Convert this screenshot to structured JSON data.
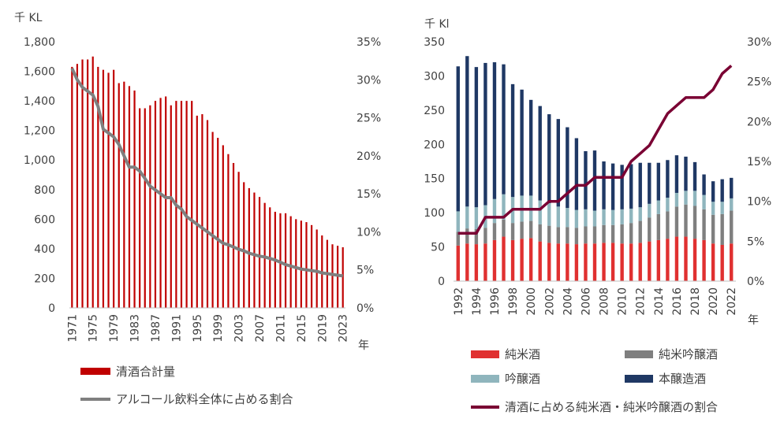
{
  "chart_data": [
    {
      "type": "bar+line",
      "ylabel_left": "千 KL",
      "xlabel": "年",
      "ylim_left": [
        0,
        1800
      ],
      "ylim_right": [
        0,
        35
      ],
      "left_ticks": [
        "0",
        "200",
        "400",
        "600",
        "800",
        "1,000",
        "1,200",
        "1,400",
        "1,600",
        "1,800"
      ],
      "right_ticks": [
        "0%",
        "5%",
        "10%",
        "15%",
        "20%",
        "25%",
        "30%",
        "35%"
      ],
      "x_ticks": [
        "1971",
        "1975",
        "1979",
        "1983",
        "1987",
        "1991",
        "1995",
        "1999",
        "2003",
        "2007",
        "2011",
        "2015",
        "2019",
        "2023"
      ],
      "years": [
        1971,
        1972,
        1973,
        1974,
        1975,
        1976,
        1977,
        1978,
        1979,
        1980,
        1981,
        1982,
        1983,
        1984,
        1985,
        1986,
        1987,
        1988,
        1989,
        1990,
        1991,
        1992,
        1993,
        1994,
        1995,
        1996,
        1997,
        1998,
        1999,
        2000,
        2001,
        2002,
        2003,
        2004,
        2005,
        2006,
        2007,
        2008,
        2009,
        2010,
        2011,
        2012,
        2013,
        2014,
        2015,
        2016,
        2017,
        2018,
        2019,
        2020,
        2021,
        2022,
        2023
      ],
      "series": [
        {
          "name": "清酒合計量",
          "axis": "left",
          "color": "#c00000",
          "values": [
            1630,
            1650,
            1680,
            1680,
            1700,
            1630,
            1610,
            1590,
            1610,
            1520,
            1530,
            1500,
            1470,
            1350,
            1350,
            1370,
            1400,
            1420,
            1430,
            1370,
            1400,
            1400,
            1400,
            1400,
            1300,
            1310,
            1270,
            1190,
            1150,
            1100,
            1040,
            980,
            920,
            850,
            810,
            780,
            750,
            710,
            680,
            650,
            640,
            640,
            620,
            600,
            590,
            580,
            560,
            530,
            490,
            460,
            430,
            420,
            410
          ]
        },
        {
          "name": "アルコール飲料全体に占める割合",
          "axis": "right",
          "color": "#7f7f7f",
          "values": [
            31.5,
            30.0,
            29.0,
            28.5,
            28.0,
            26.5,
            23.5,
            23.0,
            22.5,
            21.5,
            20.0,
            18.5,
            18.5,
            18.0,
            17.0,
            16.0,
            15.5,
            15.0,
            14.5,
            14.5,
            13.5,
            13.0,
            12.0,
            11.5,
            11.0,
            10.5,
            10.0,
            9.5,
            9.0,
            8.5,
            8.3,
            8.0,
            7.7,
            7.5,
            7.2,
            7.0,
            6.8,
            6.7,
            6.5,
            6.3,
            6.0,
            5.7,
            5.5,
            5.3,
            5.1,
            5.0,
            4.9,
            4.8,
            4.6,
            4.5,
            4.4,
            4.3,
            4.2
          ]
        }
      ],
      "legend": "bottom"
    },
    {
      "type": "stacked_bar+line",
      "ylabel_left": "千 Kl",
      "xlabel": "年",
      "ylim_left": [
        0,
        350
      ],
      "ylim_right": [
        0,
        30
      ],
      "left_ticks": [
        "0",
        "50",
        "100",
        "150",
        "200",
        "250",
        "300",
        "350"
      ],
      "right_ticks": [
        "0%",
        "5%",
        "10%",
        "15%",
        "20%",
        "25%",
        "30%"
      ],
      "x_ticks": [
        "1992",
        "1994",
        "1996",
        "1998",
        "2000",
        "2002",
        "2004",
        "2006",
        "2008",
        "2010",
        "2012",
        "2014",
        "2016",
        "2018",
        "2020",
        "2022"
      ],
      "years": [
        1992,
        1993,
        1994,
        1995,
        1996,
        1997,
        1998,
        1999,
        2000,
        2001,
        2002,
        2003,
        2004,
        2005,
        2006,
        2007,
        2008,
        2009,
        2010,
        2011,
        2012,
        2013,
        2014,
        2015,
        2016,
        2017,
        2018,
        2019,
        2020,
        2021,
        2022
      ],
      "series": [
        {
          "name": "純米酒",
          "color": "#e03030",
          "values": [
            52,
            55,
            54,
            55,
            60,
            65,
            60,
            62,
            63,
            58,
            56,
            55,
            55,
            54,
            55,
            55,
            56,
            56,
            55,
            55,
            56,
            58,
            60,
            62,
            65,
            65,
            62,
            60,
            55,
            53,
            55
          ]
        },
        {
          "name": "純米吟醸酒",
          "color": "#7f7f7f",
          "values": [
            20,
            22,
            22,
            23,
            25,
            25,
            25,
            25,
            25,
            25,
            25,
            24,
            24,
            24,
            25,
            25,
            26,
            26,
            28,
            30,
            32,
            35,
            38,
            40,
            44,
            47,
            48,
            45,
            42,
            45,
            48
          ]
        },
        {
          "name": "吟醸酒",
          "color": "#8fb5bd",
          "values": [
            30,
            32,
            32,
            33,
            35,
            37,
            38,
            38,
            37,
            35,
            33,
            30,
            28,
            26,
            25,
            23,
            23,
            22,
            22,
            21,
            20,
            20,
            20,
            20,
            20,
            20,
            22,
            21,
            19,
            18,
            18
          ]
        },
        {
          "name": "本醸造酒",
          "color": "#1f3864",
          "values": [
            212,
            220,
            205,
            208,
            200,
            190,
            165,
            155,
            140,
            138,
            130,
            128,
            118,
            105,
            85,
            88,
            70,
            68,
            65,
            65,
            65,
            60,
            55,
            55,
            55,
            50,
            42,
            30,
            30,
            33,
            30
          ]
        }
      ],
      "line": {
        "name": "清酒に占める純米酒・純米吟醸酒の割合",
        "axis": "right",
        "color": "#7a0033",
        "values": [
          6.0,
          6.0,
          6.0,
          8.0,
          8.0,
          8.0,
          9.0,
          9.0,
          9.0,
          9.0,
          10.0,
          10.0,
          11.0,
          12.0,
          12.0,
          13.0,
          13.0,
          13.0,
          13.0,
          15.0,
          16.0,
          17.0,
          19.0,
          21.0,
          22.0,
          23.0,
          23.0,
          23.0,
          24.0,
          26.0,
          27.0
        ]
      },
      "legend": "bottom"
    }
  ]
}
